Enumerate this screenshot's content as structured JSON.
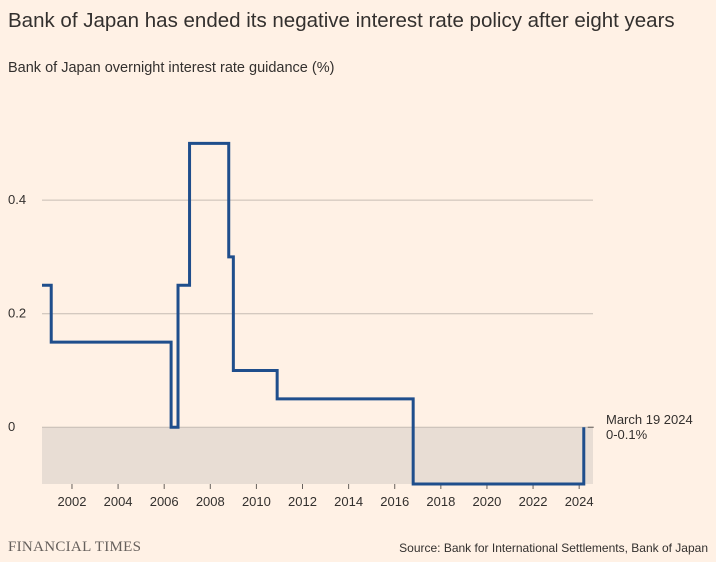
{
  "header": {
    "title": "Bank of Japan has ended its negative interest rate policy after eight years",
    "subtitle": "Bank of Japan overnight interest rate guidance (%)"
  },
  "footer": {
    "brand": "FINANCIAL TIMES",
    "source": "Source: Bank for International Settlements, Bank of Japan"
  },
  "colors": {
    "background": "#fff1e5",
    "line": "#1f4e8c",
    "negative_band": "#e8ddd4",
    "grid": "#c6bcb4"
  },
  "chart_data": {
    "type": "line",
    "title": "Bank of Japan has ended its negative interest rate policy after eight years",
    "subtitle": "Bank of Japan overnight interest rate guidance (%)",
    "xlabel": "",
    "ylabel": "",
    "xlim": [
      2000.7,
      2024.6
    ],
    "ylim": [
      -0.1,
      0.55
    ],
    "grid": true,
    "y_ticks": [
      0,
      0.2,
      0.4
    ],
    "y_tick_labels": [
      "0",
      "0.2",
      "0.4"
    ],
    "x_ticks": [
      2002,
      2004,
      2006,
      2008,
      2010,
      2012,
      2014,
      2016,
      2018,
      2020,
      2022,
      2024
    ],
    "x_tick_labels": [
      "2002",
      "2004",
      "2006",
      "2008",
      "2010",
      "2012",
      "2014",
      "2016",
      "2018",
      "2020",
      "2022",
      "2024"
    ],
    "negative_shading": {
      "from": -0.1,
      "to": 0
    },
    "series": [
      {
        "name": "Bank of Japan overnight interest rate guidance",
        "step": true,
        "x": [
          2000.7,
          2001.1,
          2006.3,
          2006.6,
          2007.1,
          2008.8,
          2009.0,
          2010.9,
          2016.8,
          2024.2
        ],
        "values": [
          0.25,
          0.15,
          0,
          0.25,
          0.5,
          0.3,
          0.1,
          0.05,
          -0.1,
          0
        ],
        "end_x": 2024.2
      }
    ],
    "annotation": {
      "x": 2024.2,
      "y": 0,
      "line1": "March 19 2024",
      "line2": "0-0.1%"
    }
  }
}
